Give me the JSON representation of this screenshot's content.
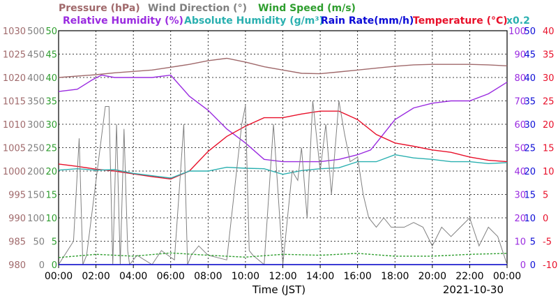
{
  "chart_data": {
    "type": "line",
    "date_label": "2021-10-30",
    "xlabel": "Time (JST)",
    "x_ticks": [
      "00:00",
      "02:00",
      "04:00",
      "06:00",
      "08:00",
      "10:00",
      "12:00",
      "14:00",
      "16:00",
      "18:00",
      "20:00",
      "22:00",
      "00:00"
    ],
    "axes": {
      "pressure": {
        "ticks": [
          980,
          985,
          990,
          995,
          1000,
          1005,
          1010,
          1015,
          1020,
          1025,
          1030
        ],
        "color": "#a0696b"
      },
      "wind_direction": {
        "ticks": [
          0,
          50,
          100,
          150,
          200,
          250,
          300,
          350,
          400,
          450,
          500
        ],
        "color": "#808080"
      },
      "wind_speed": {
        "ticks": [
          0,
          5,
          10,
          15,
          20,
          25,
          30,
          35,
          40,
          45,
          50
        ],
        "color": "#2e9e2e"
      },
      "humidity": {
        "ticks": [
          0,
          10,
          20,
          30,
          40,
          50,
          60,
          70,
          80,
          90,
          100
        ],
        "color": "#9a2be0"
      },
      "rain_rate": {
        "ticks": [
          0,
          5,
          10,
          15,
          20,
          25,
          30,
          35,
          40,
          45,
          50
        ],
        "color": "#0b0bd6"
      },
      "temperature": {
        "ticks": [
          -10,
          -5,
          0,
          5,
          10,
          15,
          20,
          25,
          30,
          35,
          40
        ],
        "color": "#e8102a"
      }
    },
    "legend": [
      {
        "label": "Pressure (hPa)",
        "color": "#a0696b"
      },
      {
        "label": "Wind Direction (°)",
        "color": "#808080"
      },
      {
        "label": "Wind Speed (m/s)",
        "color": "#2e9e2e"
      },
      {
        "label": "Relative Humidity (%)",
        "color": "#9a2be0"
      },
      {
        "label": "Absolute Humidity (g/m³)",
        "color": "#2ab0b0"
      },
      {
        "label": "Rain Rate(mm/h)",
        "color": "#0b0bd6"
      },
      {
        "label": "Temperature (°C)",
        "color": "#e8102a"
      }
    ],
    "scale_note": "x0.2",
    "series": [
      {
        "key": "pressure",
        "color": "#a0696b",
        "axis": "pressure",
        "x": [
          0,
          2,
          3,
          4,
          5,
          6,
          7,
          8,
          9,
          10,
          11,
          12,
          13,
          14,
          15,
          16,
          17,
          18,
          19,
          20,
          21,
          22,
          23,
          24
        ],
        "y": [
          1020.0,
          1020.6,
          1021.0,
          1021.3,
          1021.6,
          1022.2,
          1022.8,
          1023.6,
          1024.1,
          1023.3,
          1022.3,
          1021.6,
          1020.9,
          1020.8,
          1021.2,
          1021.6,
          1022.0,
          1022.4,
          1022.7,
          1022.8,
          1022.8,
          1022.8,
          1022.7,
          1022.5
        ]
      },
      {
        "key": "relative_humidity",
        "color": "#9a2be0",
        "axis": "humidity",
        "x": [
          0,
          1,
          1.8,
          2.3,
          3,
          4,
          5,
          6,
          7,
          8,
          9,
          10,
          11,
          12,
          13,
          14,
          15,
          16,
          16.7,
          17,
          18,
          19,
          20,
          21,
          22,
          23,
          24
        ],
        "y": [
          74,
          75,
          79,
          81,
          80,
          80,
          80,
          81,
          72,
          66,
          58,
          52,
          45,
          44,
          44,
          44,
          45,
          47,
          49,
          52,
          62,
          67,
          69,
          70,
          70,
          73,
          78
        ]
      },
      {
        "key": "temperature",
        "color": "#e8102a",
        "axis": "temperature",
        "x": [
          0,
          1,
          2,
          3,
          4,
          5,
          6,
          7,
          8,
          9,
          10,
          11,
          12,
          13,
          14,
          15,
          16,
          17,
          18,
          19,
          20,
          21,
          22,
          23,
          24
        ],
        "y": [
          11.5,
          11.0,
          10.4,
          10.0,
          9.4,
          8.8,
          8.3,
          10.0,
          14.2,
          17.4,
          19.6,
          21.4,
          21.4,
          22.2,
          22.8,
          22.8,
          21.0,
          17.8,
          16.0,
          15.3,
          14.5,
          14.0,
          13.0,
          12.3,
          12.0
        ]
      },
      {
        "key": "absolute_humidity",
        "color": "#2ab0b0",
        "axis": "rain_rate",
        "x": [
          0,
          1,
          2,
          3,
          4,
          5,
          6,
          7,
          8,
          9,
          10,
          11,
          12,
          13,
          14,
          15,
          16,
          17,
          18,
          19,
          20,
          21,
          22,
          23,
          24
        ],
        "y": [
          20.2,
          20.5,
          20.2,
          20.3,
          19.5,
          19.0,
          18.5,
          20.0,
          20.0,
          20.8,
          20.6,
          20.5,
          19.3,
          20.1,
          20.5,
          20.7,
          22.0,
          22.0,
          23.5,
          22.8,
          22.5,
          22.0,
          22.0,
          21.6,
          21.8
        ]
      },
      {
        "key": "wind_direction",
        "color": "#808080",
        "axis": "wind_direction",
        "x": [
          0,
          0.8,
          1.1,
          1.3,
          1.5,
          2.5,
          2.7,
          2.9,
          3.1,
          3.3,
          3.5,
          3.7,
          3.8,
          4.2,
          4.6,
          5.0,
          5.5,
          6.2,
          6.7,
          6.9,
          7.1,
          7.5,
          8.0,
          9.0,
          9.8,
          10.0,
          10.2,
          10.4,
          11,
          11.5,
          12.0,
          12.5,
          12.8,
          13.0,
          13.3,
          13.6,
          14.0,
          14.3,
          14.6,
          15.0,
          15.3,
          15.6,
          16.0,
          16.3,
          16.6,
          17.0,
          17.4,
          17.8,
          18.5,
          19.0,
          19.5,
          20.0,
          20.5,
          21.0,
          21.5,
          22.0,
          22.5,
          23.0,
          23.5,
          24.0
        ],
        "y": [
          0,
          50,
          270,
          0,
          20,
          338,
          338,
          0,
          300,
          0,
          290,
          30,
          0,
          20,
          10,
          0,
          30,
          10,
          300,
          0,
          20,
          40,
          20,
          10,
          300,
          340,
          30,
          20,
          0,
          300,
          0,
          200,
          180,
          250,
          100,
          350,
          200,
          300,
          150,
          350,
          280,
          220,
          230,
          150,
          100,
          80,
          100,
          80,
          80,
          90,
          80,
          40,
          80,
          60,
          80,
          100,
          40,
          80,
          60,
          0
        ]
      },
      {
        "key": "wind_speed",
        "color": "#2e9e2e",
        "axis": "wind_speed",
        "x": [
          0,
          2,
          4,
          6,
          8,
          10,
          12,
          14,
          16,
          18,
          20,
          22,
          24
        ],
        "y": [
          1.5,
          2.2,
          1.8,
          2.5,
          2.0,
          1.6,
          2.2,
          2.0,
          2.4,
          1.8,
          1.8,
          2.2,
          2.4
        ]
      },
      {
        "key": "rain_rate",
        "color": "#0b0bd6",
        "axis": "rain_rate",
        "x": [
          0,
          24
        ],
        "y": [
          0,
          0
        ]
      }
    ]
  }
}
